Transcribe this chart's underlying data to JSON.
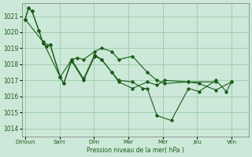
{
  "background_color": "#cce8d8",
  "grid_color": "#99ccaa",
  "line_color": "#1a5c1a",
  "xlabel": "Pression niveau de la mer( hPa )",
  "ylim": [
    1013.5,
    1021.8
  ],
  "yticks": [
    1014,
    1015,
    1016,
    1017,
    1018,
    1019,
    1020,
    1021
  ],
  "x_labels": [
    "Dirloun",
    "Sam",
    "Dim",
    "Mar",
    "Mer",
    "Jeu",
    "Ven"
  ],
  "x_positions": [
    0,
    1,
    2,
    3,
    4,
    5,
    6
  ],
  "xlim": [
    -0.1,
    6.5
  ],
  "series": [
    [
      1020.8,
      1021.5,
      1021.3,
      1020.1,
      1019.3,
      1019.1,
      1019.2,
      1017.2,
      1018.3,
      1018.4,
      1018.3,
      1018.8,
      1019.0,
      1018.8,
      1018.3,
      1018.5,
      1017.5,
      1017.0,
      1016.8,
      1016.9,
      1016.9
    ],
    [
      1020.8,
      1021.5,
      1021.3,
      1020.1,
      1019.3,
      1019.2,
      1017.2,
      1016.8,
      1018.2,
      1017.0,
      1018.5,
      1018.3,
      1017.5,
      1016.9,
      1016.5,
      1016.9,
      1016.7,
      1017.0,
      1016.9,
      1016.8,
      1016.4,
      1016.9
    ],
    [
      1020.8,
      1019.4,
      1017.2,
      1016.8,
      1018.3,
      1017.1,
      1018.6,
      1018.3,
      1017.5,
      1017.0,
      1016.9,
      1016.5,
      1016.5,
      1014.8,
      1014.5,
      1016.5,
      1016.3,
      1017.0,
      1016.3,
      1016.9
    ]
  ],
  "series_x": [
    [
      0.0,
      0.1,
      0.2,
      0.4,
      0.52,
      0.62,
      0.73,
      1.02,
      1.35,
      1.52,
      1.7,
      2.02,
      2.22,
      2.52,
      2.72,
      3.12,
      3.55,
      3.83,
      4.05,
      4.75,
      5.55
    ],
    [
      0.0,
      0.1,
      0.2,
      0.4,
      0.52,
      0.73,
      1.02,
      1.12,
      1.35,
      1.7,
      2.02,
      2.22,
      2.52,
      2.72,
      3.12,
      3.55,
      3.83,
      4.05,
      4.75,
      5.05,
      5.55,
      6.0
    ],
    [
      0.0,
      0.52,
      1.02,
      1.12,
      1.35,
      1.7,
      2.02,
      2.22,
      2.52,
      2.72,
      3.12,
      3.42,
      3.55,
      3.83,
      4.25,
      4.75,
      5.05,
      5.55,
      5.85,
      6.0
    ]
  ]
}
